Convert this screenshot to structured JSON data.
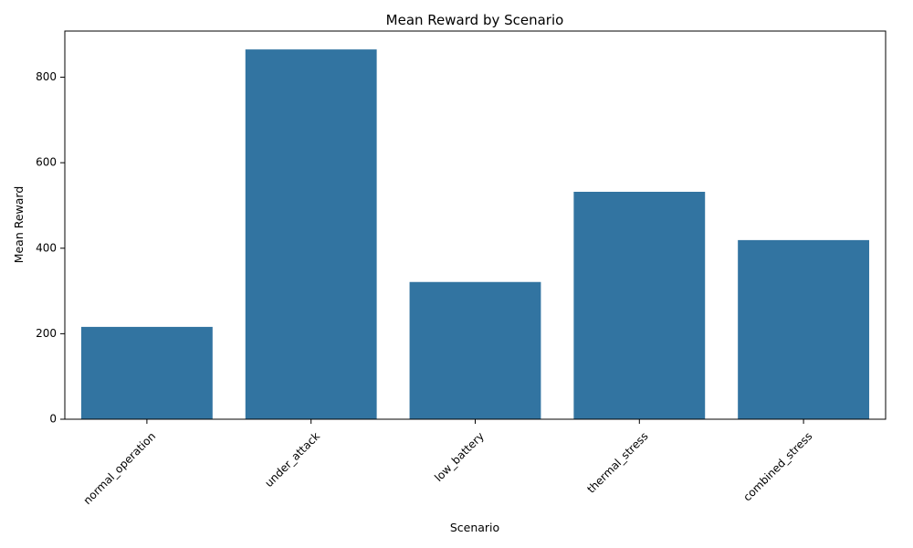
{
  "chart_data": {
    "type": "bar",
    "title": "Mean Reward by Scenario",
    "xlabel": "Scenario",
    "ylabel": "Mean Reward",
    "categories": [
      "normal_operation",
      "under_attack",
      "low_battery",
      "thermal_stress",
      "combined_stress"
    ],
    "values": [
      216,
      865,
      321,
      532,
      419
    ],
    "ylim": [
      0,
      908
    ],
    "yticks": [
      0,
      200,
      400,
      600,
      800
    ],
    "ytick_labels": [
      "0",
      "200",
      "400",
      "600",
      "800"
    ],
    "grid": false,
    "legend": "none",
    "bar_color": "#3274a1",
    "xtick_rotation_deg": 45
  }
}
